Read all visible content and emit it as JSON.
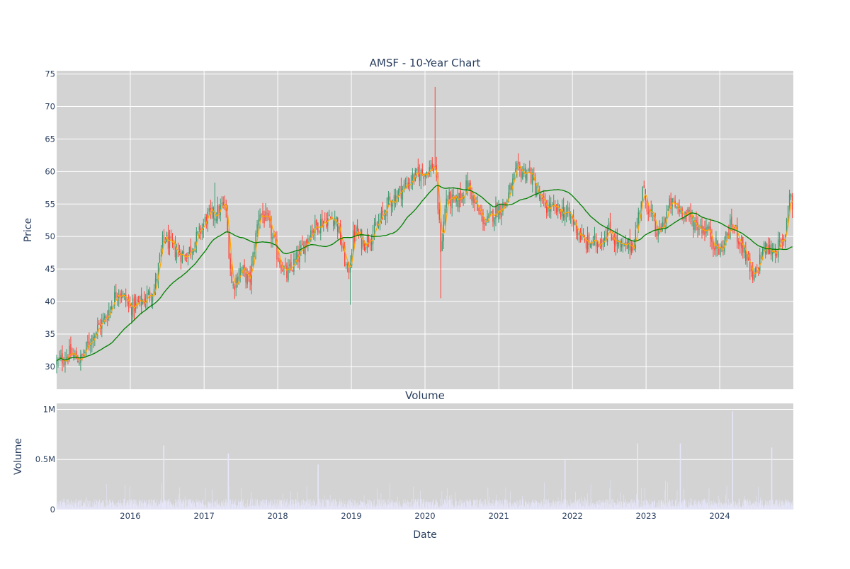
{
  "chart_data": [
    {
      "type": "candlestick",
      "title": "AMSF - 10-Year Chart",
      "ylabel": "Price",
      "ylim": [
        26.5,
        75.5
      ],
      "yticks": [
        30,
        35,
        40,
        45,
        50,
        55,
        60,
        65,
        70,
        75
      ],
      "grid": true,
      "background": "#d3d3d3",
      "up_color": "#3d9970",
      "down_color": "#ff4136",
      "close_anchors": {
        "x": [
          "2015-01-01",
          "2015-03-01",
          "2015-05-01",
          "2015-07-01",
          "2015-09-01",
          "2015-11-01",
          "2016-01-01",
          "2016-03-01",
          "2016-05-01",
          "2016-06-15",
          "2016-08-01",
          "2016-10-01",
          "2016-12-01",
          "2017-01-15",
          "2017-03-01",
          "2017-04-15",
          "2017-05-20",
          "2017-07-01",
          "2017-08-15",
          "2017-10-01",
          "2017-11-15",
          "2018-01-01",
          "2018-02-15",
          "2018-04-15",
          "2018-06-15",
          "2018-08-15",
          "2018-10-15",
          "2018-12-15",
          "2019-01-15",
          "2019-03-01",
          "2019-05-01",
          "2019-07-01",
          "2019-09-01",
          "2019-11-01",
          "2020-01-01",
          "2020-02-20",
          "2020-03-20",
          "2020-04-15",
          "2020-06-01",
          "2020-08-01",
          "2020-09-15",
          "2020-11-01",
          "2020-12-15",
          "2021-02-01",
          "2021-04-01",
          "2021-06-01",
          "2021-08-01",
          "2021-10-01",
          "2021-11-15",
          "2022-01-01",
          "2022-03-01",
          "2022-05-01",
          "2022-07-01",
          "2022-09-01",
          "2022-11-01",
          "2022-12-15",
          "2023-03-01",
          "2023-05-01",
          "2023-07-01",
          "2023-09-01",
          "2023-11-01",
          "2024-01-01",
          "2024-03-01",
          "2024-05-01",
          "2024-06-15",
          "2024-08-01",
          "2024-10-01",
          "2024-11-15",
          "2024-12-15",
          "2024-12-31"
        ],
        "y": [
          30.5,
          32,
          31,
          35,
          37.5,
          42,
          39,
          40,
          42,
          50,
          48,
          47,
          50,
          53,
          53.5,
          55,
          42,
          45,
          43,
          54,
          52,
          47,
          44,
          47,
          51,
          52.5,
          53,
          44,
          51,
          49,
          51,
          55,
          57,
          59,
          60,
          61,
          48,
          56,
          55,
          58,
          54,
          52,
          54,
          55,
          60,
          60,
          55,
          54,
          54,
          52.5,
          49,
          49,
          51,
          48,
          49,
          57,
          50,
          55,
          54,
          52,
          51,
          47.5,
          52,
          48,
          43,
          48,
          48,
          49,
          58,
          52
        ]
      },
      "series": [
        {
          "name": "",
          "color": "#ffa500",
          "window_days": 20
        },
        {
          "name": "",
          "color": "#008000",
          "window_days": 200
        }
      ]
    },
    {
      "type": "bar",
      "title": "Volume",
      "ylabel": "Volume",
      "xlabel": "Date",
      "ylim": [
        0,
        1060000
      ],
      "yticks": [
        {
          "value": 0,
          "label": "0"
        },
        {
          "value": 500000,
          "label": "0.5M"
        },
        {
          "value": 1000000,
          "label": "1M"
        }
      ],
      "bar_color": "#e6e6fa",
      "typical_volume": 60000,
      "spikes": [
        {
          "x": "2016-06-15",
          "value": 640000
        },
        {
          "x": "2017-05-01",
          "value": 560000
        },
        {
          "x": "2018-07-20",
          "value": 450000
        },
        {
          "x": "2021-11-25",
          "value": 500000
        },
        {
          "x": "2022-11-20",
          "value": 660000
        },
        {
          "x": "2023-06-20",
          "value": 660000
        },
        {
          "x": "2024-03-05",
          "value": 980000
        },
        {
          "x": "2024-09-15",
          "value": 620000
        }
      ]
    }
  ],
  "x_axis": {
    "range": [
      "2015-01-01",
      "2024-12-31"
    ],
    "ticks": [
      "2016",
      "2017",
      "2018",
      "2019",
      "2020",
      "2021",
      "2022",
      "2023",
      "2024"
    ]
  }
}
